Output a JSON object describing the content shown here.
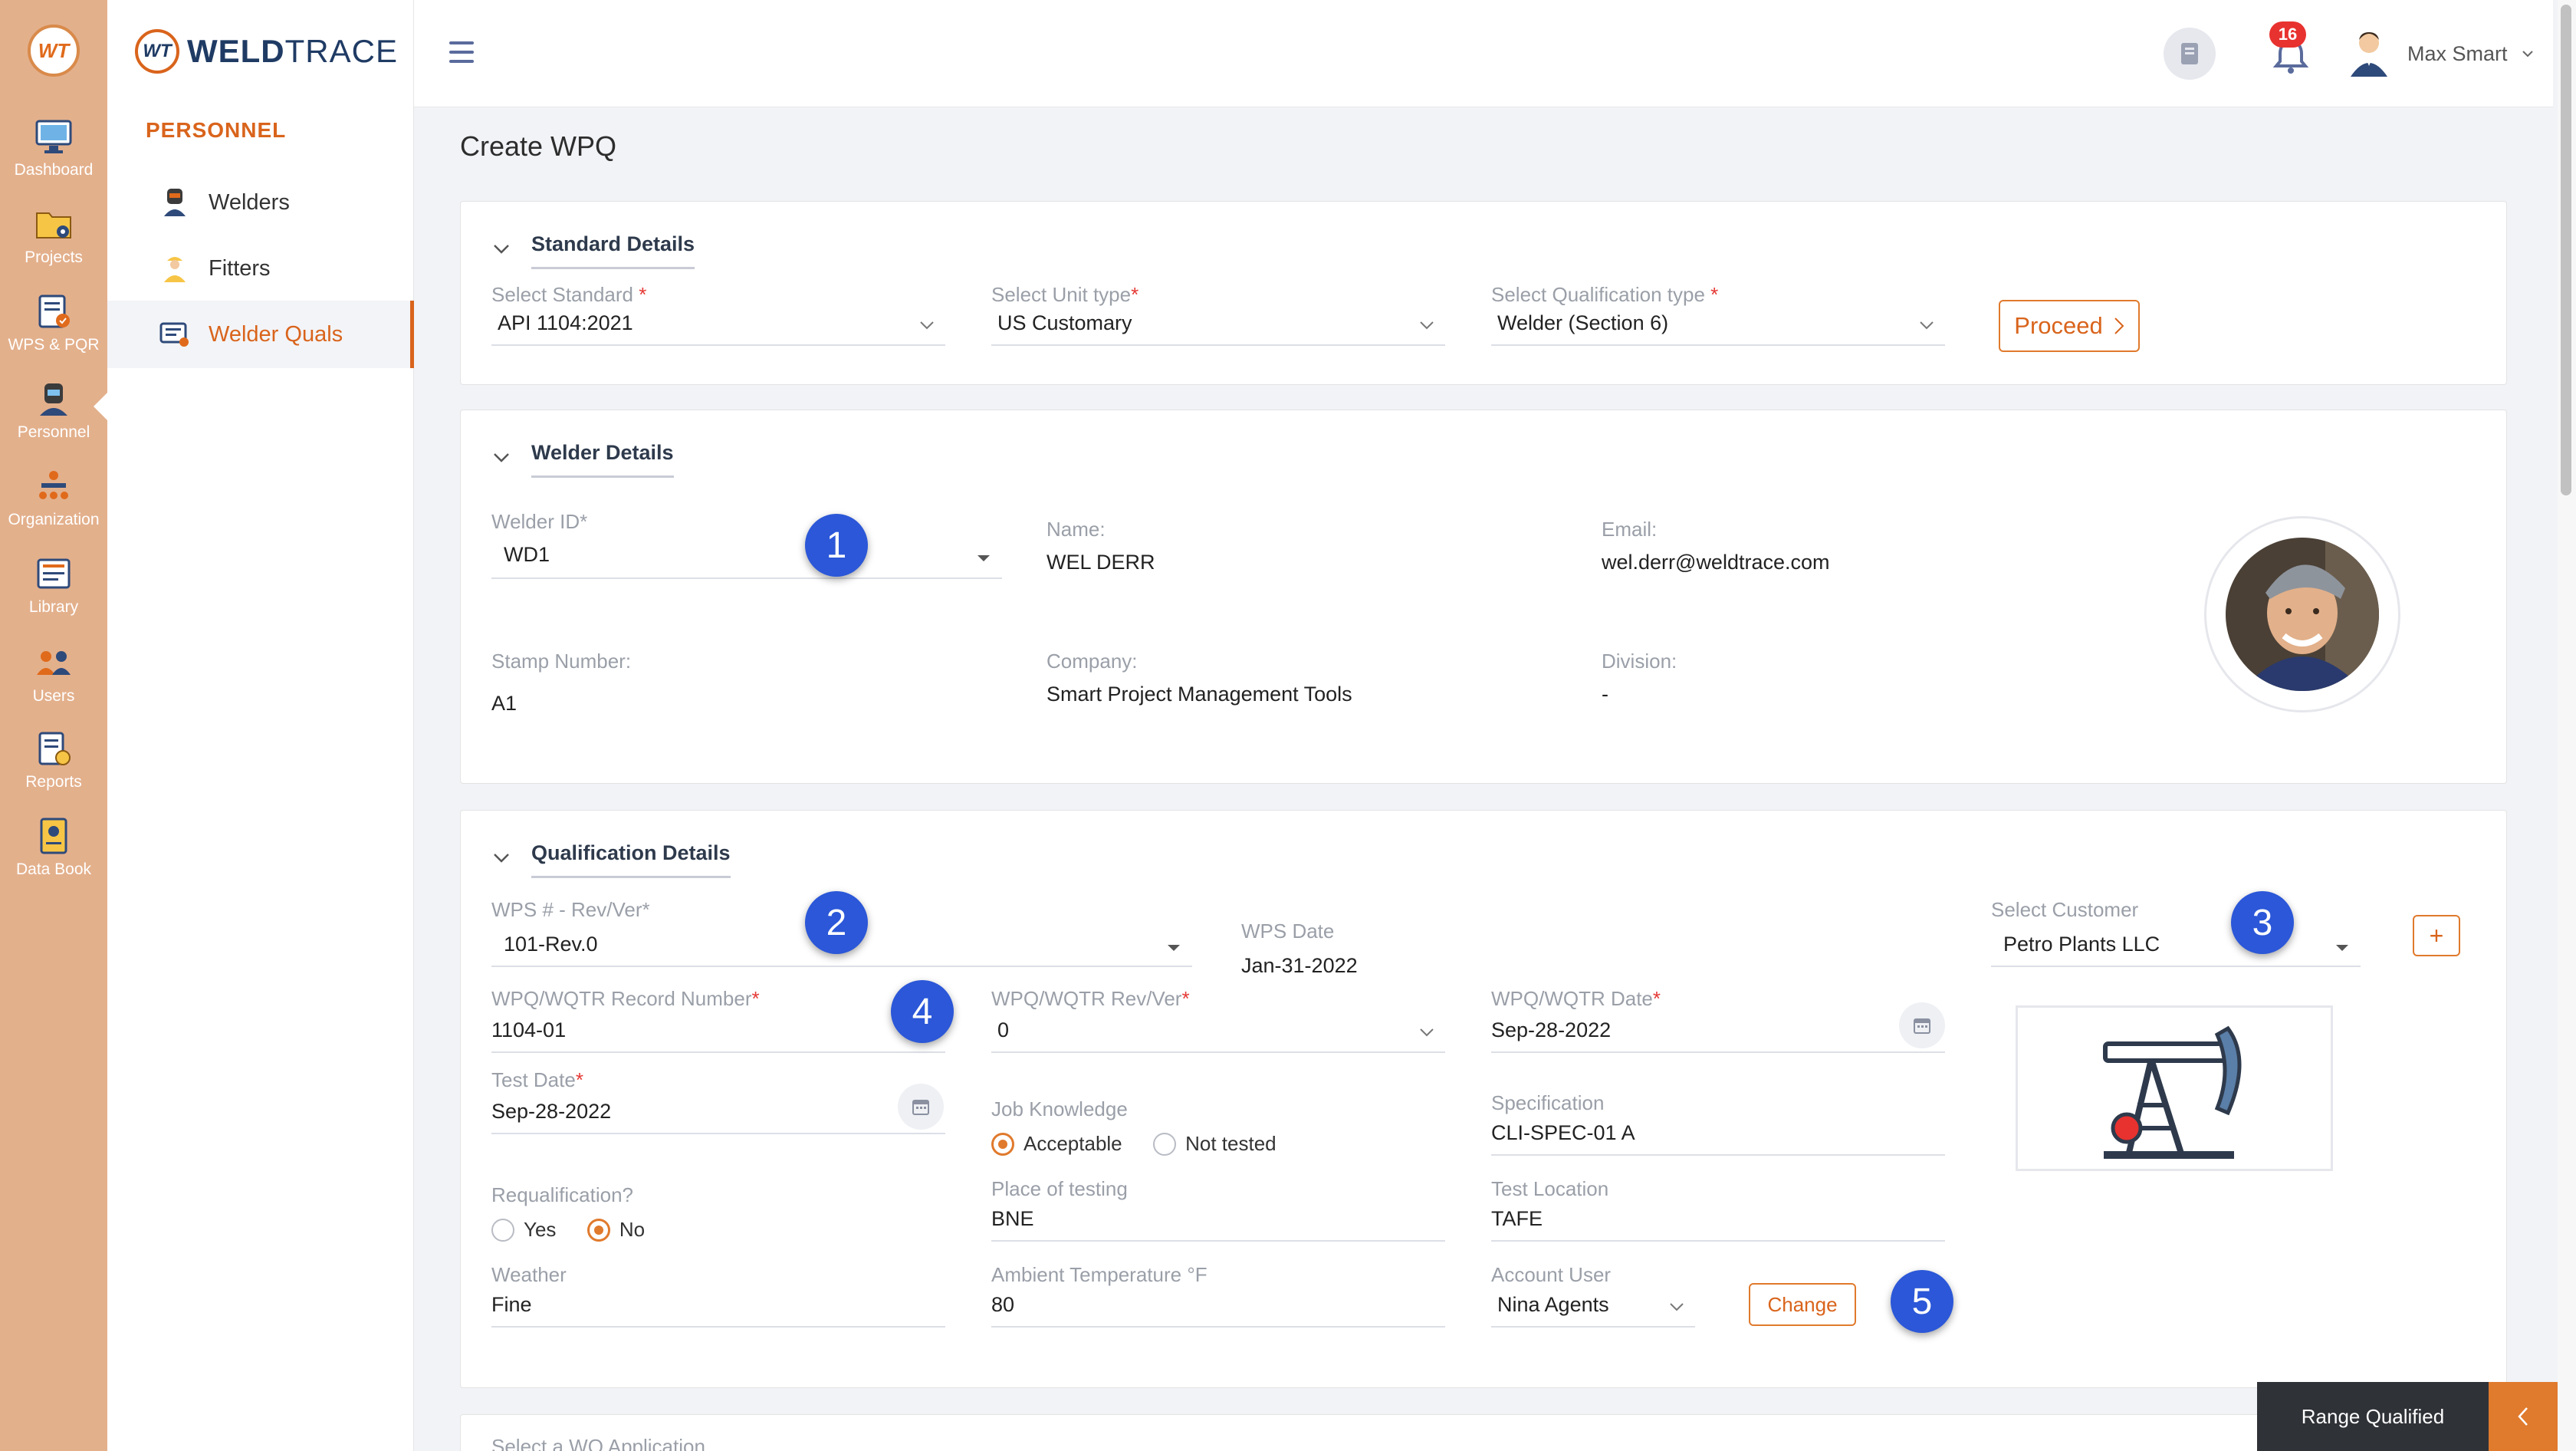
{
  "rail": {
    "logo": "WT",
    "items": [
      {
        "label": "Dashboard",
        "icon": "dashboard-icon"
      },
      {
        "label": "Projects",
        "icon": "projects-folder-icon"
      },
      {
        "label": "WPS & PQR",
        "icon": "wps-pqr-icon"
      },
      {
        "label": "Personnel",
        "icon": "personnel-welder-icon"
      },
      {
        "label": "Organization",
        "icon": "organization-icon"
      },
      {
        "label": "Library",
        "icon": "library-icon"
      },
      {
        "label": "Users",
        "icon": "users-icon"
      },
      {
        "label": "Reports",
        "icon": "reports-icon"
      },
      {
        "label": "Data Book",
        "icon": "data-book-icon"
      }
    ]
  },
  "brand": {
    "mark": "WT",
    "name_bold": "WELD",
    "name_light": "TRACE"
  },
  "sidebar": {
    "heading": "PERSONNEL",
    "items": [
      {
        "label": "Welders",
        "icon": "welder-icon"
      },
      {
        "label": "Fitters",
        "icon": "fitter-icon"
      },
      {
        "label": "Welder Quals",
        "icon": "welder-quals-icon",
        "active": true
      }
    ]
  },
  "topbar": {
    "notifications": "16",
    "user_name": "Max Smart"
  },
  "page": {
    "title": "Create WPQ"
  },
  "standard_details": {
    "title": "Standard Details",
    "standard_label": "Select Standard",
    "standard_value": "API 1104:2021",
    "unit_label": "Select Unit type",
    "unit_value": "US Customary",
    "qual_label": "Select Qualification type",
    "qual_value": "Welder (Section 6)",
    "proceed": "Proceed"
  },
  "welder_details": {
    "title": "Welder Details",
    "welder_id_label": "Welder ID*",
    "welder_id_value": "WD1",
    "name_label": "Name:",
    "name_value": "WEL DERR",
    "email_label": "Email:",
    "email_value": "wel.derr@weldtrace.com",
    "stamp_label": "Stamp Number:",
    "stamp_value": "A1",
    "company_label": "Company:",
    "company_value": "Smart Project Management Tools",
    "division_label": "Division:",
    "division_value": "-"
  },
  "qualification_details": {
    "title": "Qualification Details",
    "wps_label": "WPS # - Rev/Ver*",
    "wps_value": "101-Rev.0",
    "wps_date_label": "WPS Date",
    "wps_date_value": "Jan-31-2022",
    "customer_label": "Select Customer",
    "customer_value": "Petro Plants LLC",
    "add_customer": "+",
    "record_label": "WPQ/WQTR Record Number",
    "record_value": "1104-01",
    "rev_label": "WPQ/WQTR Rev/Ver",
    "rev_value": "0",
    "wpq_date_label": "WPQ/WQTR Date",
    "wpq_date_value": "Sep-28-2022",
    "test_date_label": "Test Date",
    "test_date_value": "Sep-28-2022",
    "job_knowledge_label": "Job Knowledge",
    "job_opt_acceptable": "Acceptable",
    "job_opt_not_tested": "Not tested",
    "job_selected": "Acceptable",
    "spec_label": "Specification",
    "spec_value": "CLI-SPEC-01 A",
    "requal_label": "Requalification?",
    "requal_yes": "Yes",
    "requal_no": "No",
    "requal_selected": "No",
    "place_label": "Place of testing",
    "place_value": "BNE",
    "location_label": "Test Location",
    "location_value": "TAFE",
    "weather_label": "Weather",
    "weather_value": "Fine",
    "ambient_label": "Ambient Temperature °F",
    "ambient_value": "80",
    "account_label": "Account User",
    "account_value": "Nina Agents",
    "change": "Change"
  },
  "next_card": {
    "label": "Select a WQ Application"
  },
  "annotations": [
    "1",
    "2",
    "3",
    "4",
    "5"
  ],
  "range_bar": {
    "label": "Range Qualified"
  },
  "colors": {
    "accent": "#d9641c",
    "rail": "#e3b08c",
    "badge": "#2b57d8",
    "brand": "#1f3b64"
  }
}
